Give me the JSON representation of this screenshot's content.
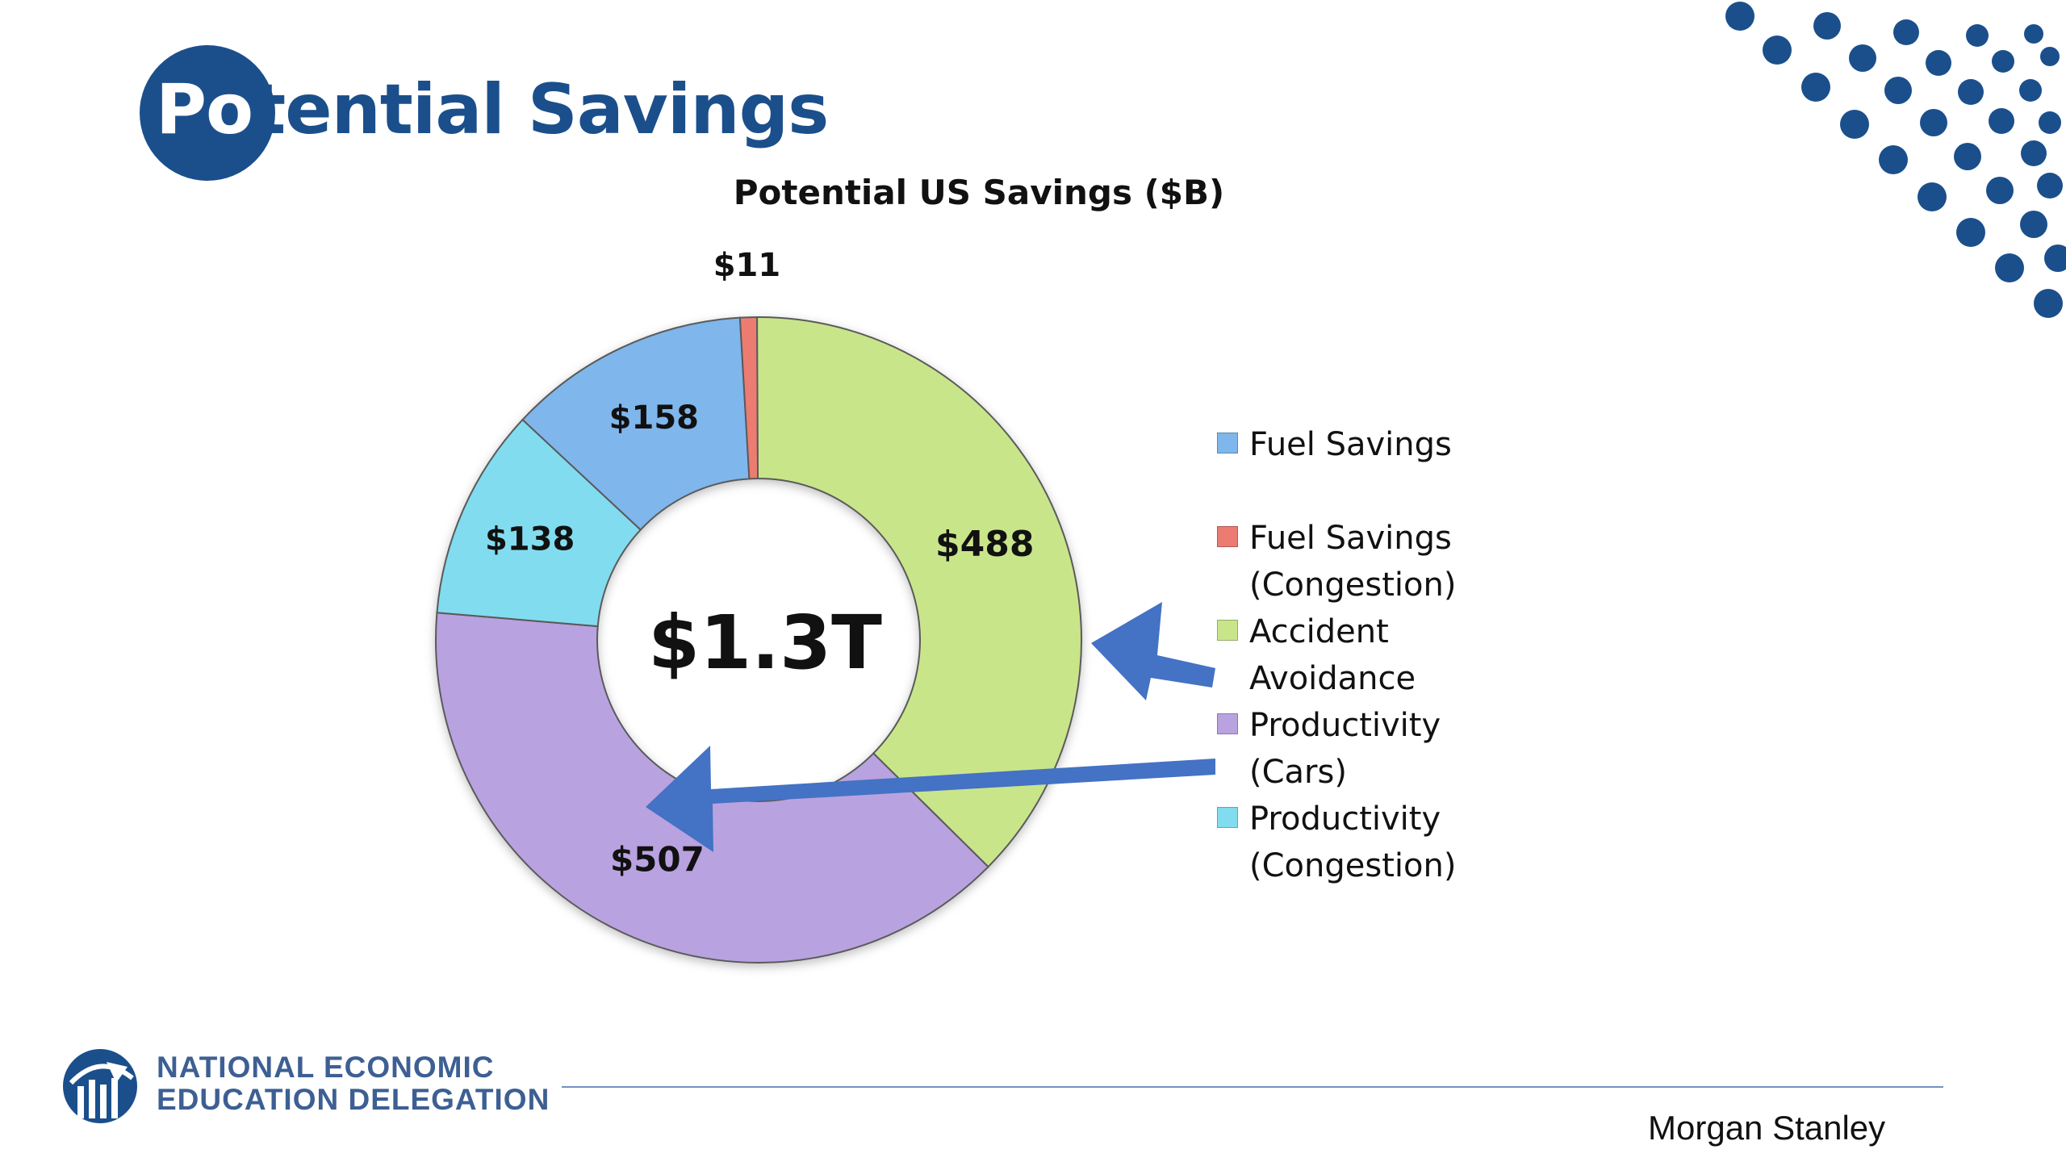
{
  "slide": {
    "title_part1": "Po",
    "title_part2": "tential Savings",
    "footer": {
      "org_line1": "NATIONAL ECONOMIC",
      "org_line2": "EDUCATION DELEGATION",
      "source": "Morgan Stanley"
    },
    "colors": {
      "brand": "#1b4f8c",
      "arrow": "#4472c4"
    }
  },
  "chart_data": {
    "type": "donut",
    "title": "Potential US Savings ($B)",
    "center_label": "$1.3T",
    "series": [
      {
        "name": "Fuel Savings",
        "value": 158,
        "label": "$158",
        "color": "#7fb6ec"
      },
      {
        "name": "Fuel Savings\n(Congestion)",
        "value": 11,
        "label": "$11",
        "color": "#ec7b72"
      },
      {
        "name": "Accident\nAvoidance",
        "value": 488,
        "label": "$488",
        "color": "#c9e58a"
      },
      {
        "name": "Productivity\n(Cars)",
        "value": 507,
        "label": "$507",
        "color": "#b9a2e0"
      },
      {
        "name": "Productivity\n(Congestion)",
        "value": 138,
        "label": "$138",
        "color": "#82dcef"
      }
    ],
    "legend_position": "right",
    "annotations": [
      "arrow-to-$488",
      "arrow-to-$507"
    ]
  }
}
